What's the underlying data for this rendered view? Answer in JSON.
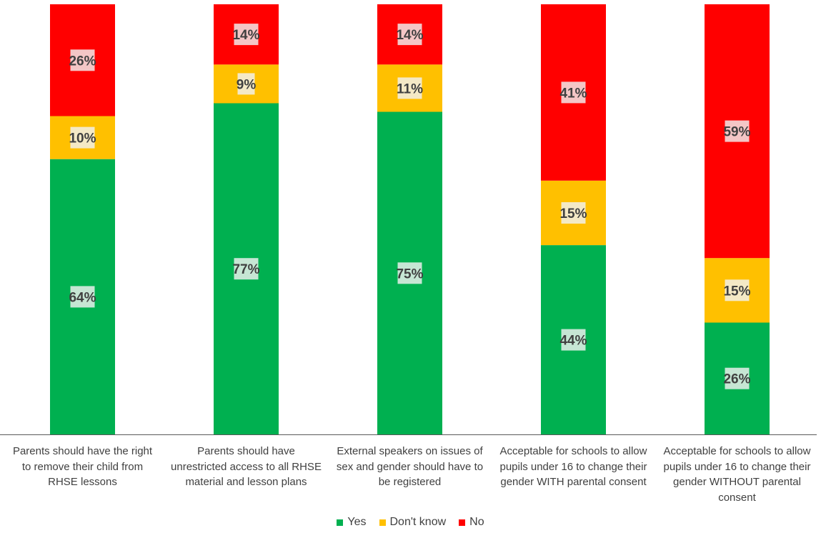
{
  "colors": {
    "yes": "#00B050",
    "dont_know": "#FFC000",
    "no": "#FF0000",
    "label_bg": "#F2F2F2",
    "text": "#404040",
    "axis": "#595959"
  },
  "chart_data": {
    "type": "bar",
    "stacked": true,
    "percent": true,
    "ylim": [
      0,
      100
    ],
    "grid": false,
    "legend_position": "bottom",
    "categories": [
      "Parents should have the right to remove their child from RHSE lessons",
      "Parents should have unrestricted access to all RHSE material and lesson plans",
      "External speakers on issues of sex and gender should have to be registered",
      "Acceptable for schools to allow pupils under 16 to change their gender WITH parental consent",
      "Acceptable for schools to allow pupils under 16 to change their gender WITHOUT parental consent"
    ],
    "category_lines": [
      [
        "Parents should have the right",
        "to remove their child from",
        "RHSE lessons"
      ],
      [
        "Parents should have",
        "unrestricted access to all RHSE",
        "material and lesson plans"
      ],
      [
        "External speakers on issues of",
        "sex and gender should have to",
        "be registered"
      ],
      [
        "Acceptable for schools to allow",
        "pupils under 16 to change their",
        "gender WITH parental consent"
      ],
      [
        "Acceptable for schools to allow",
        "pupils under 16 to change their",
        "gender WITHOUT parental",
        "consent"
      ]
    ],
    "series": [
      {
        "name": "Yes",
        "key": "yes",
        "values": [
          64,
          77,
          75,
          44,
          26
        ],
        "labels": [
          "64%",
          "77%",
          "75%",
          "44%",
          "26%"
        ]
      },
      {
        "name": "Don't know",
        "key": "dont_know",
        "values": [
          10,
          9,
          11,
          15,
          15
        ],
        "labels": [
          "10%",
          "9%",
          "11%",
          "15%",
          "15%"
        ]
      },
      {
        "name": "No",
        "key": "no",
        "values": [
          26,
          14,
          14,
          41,
          59
        ],
        "labels": [
          "26%",
          "14%",
          "14%",
          "41%",
          "59%"
        ]
      }
    ]
  },
  "legend": {
    "items": [
      {
        "label": "Yes",
        "color": "#00B050"
      },
      {
        "label": "Don't know",
        "color": "#FFC000"
      },
      {
        "label": "No",
        "color": "#FF0000"
      }
    ]
  }
}
